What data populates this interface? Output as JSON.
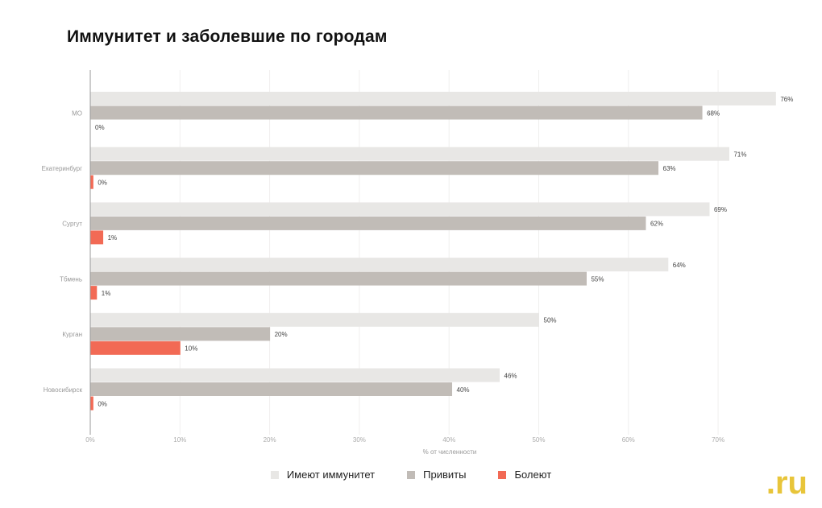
{
  "chart_data": {
    "type": "bar",
    "orientation": "horizontal",
    "title": "Иммунитет и заболевшие по городам",
    "xlabel": "% от численности",
    "ylabel": "",
    "xlim": [
      0,
      76
    ],
    "xticks": [
      "0%",
      "10%",
      "20%",
      "30%",
      "40%",
      "50%",
      "60%",
      "70%"
    ],
    "grid": true,
    "legend_position": "bottom",
    "categories": [
      "МО",
      "Екатеринбург",
      "Сургут",
      "Тбмень",
      "Курган",
      "Новосибирск"
    ],
    "series": [
      {
        "name": "Имеют иммунитет",
        "color": "#e8e7e5",
        "values": [
          76.4,
          71.2,
          69.0,
          64.4,
          50.0,
          45.6
        ],
        "labels": [
          "76%",
          "71%",
          "69%",
          "64%",
          "50%",
          "46%"
        ]
      },
      {
        "name": "Привиты",
        "color": "#c1bcb7",
        "values": [
          68.2,
          63.3,
          61.9,
          55.3,
          20.0,
          40.3
        ],
        "labels": [
          "68%",
          "63%",
          "62%",
          "55%",
          "20%",
          "40%"
        ]
      },
      {
        "name": "Болеют",
        "color": "#f26a55",
        "values": [
          0.0,
          0.3,
          1.4,
          0.7,
          10.0,
          0.3
        ],
        "labels": [
          "0%",
          "0%",
          "1%",
          "1%",
          "10%",
          "0%"
        ]
      }
    ]
  },
  "logo": ".ru"
}
